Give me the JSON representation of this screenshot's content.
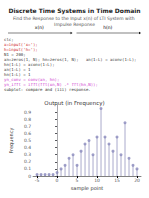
{
  "chart_data": {
    "type": "stem",
    "title": "Discrete Time Systems in Time Domain",
    "subtitle": "Find the Response to the Input x(n) of LTI System with Impulse Response",
    "plot_title": "Output (in Frequency)",
    "xlabel": "sample point",
    "ylabel": "Frequency",
    "x": [
      -5,
      -4,
      -3,
      -2,
      -1,
      0,
      1,
      2,
      3,
      4,
      5,
      6,
      7,
      8,
      9,
      10,
      11,
      12,
      13,
      14,
      15,
      16,
      17,
      18,
      19,
      20
    ],
    "series": [
      {
        "type": "bar",
        "color": "#aaaacc",
        "values": [
          0.02,
          0.02,
          0.02,
          0.02,
          0.02,
          0.05,
          0.1,
          0.15,
          0.25,
          0.3,
          0.15,
          0.35,
          0.45,
          0.5,
          0.3,
          0.55,
          0.95,
          0.55,
          0.45,
          0.35,
          0.55,
          0.3,
          0.75,
          0.25,
          0.15,
          0.1
        ]
      },
      {
        "type": "scatter",
        "color": "#8888bb",
        "marker": "circle",
        "values": [
          0.02,
          0.02,
          0.02,
          0.02,
          0.02,
          0.05,
          0.1,
          0.15,
          0.25,
          0.3,
          0.15,
          0.35,
          0.45,
          0.5,
          0.3,
          0.55,
          0.95,
          0.55,
          0.45,
          0.35,
          0.55,
          0.3,
          0.75,
          0.25,
          0.15,
          0.1
        ]
      }
    ],
    "xlim": [
      -6,
      21
    ],
    "xticks": [
      -5,
      0,
      5,
      10,
      15,
      20
    ],
    "ylim": [
      0,
      1.0
    ],
    "yticks": [
      0,
      0.1,
      0.2,
      0.3,
      0.4,
      0.5,
      0.6,
      0.7,
      0.8,
      0.9
    ],
    "grid": false,
    "annotations": {
      "number_lines": [
        {
          "text": "x(n)",
          "color": "#000000"
        },
        {
          "text": "h(n)",
          "color": "#000000"
        }
      ],
      "code": [
        {
          "text": "clc;",
          "color": "#333333"
        },
        {
          "text": "x=input('x=');",
          "color": "#cc2222"
        },
        {
          "text": "h=input('h=');",
          "color": "#cc2222"
        },
        {
          "text": "N1 = 200;",
          "color": "#333333"
        },
        {
          "text": "xn=zeros(1, N); hn=zeros(1, N);   xn(1:L) = xconv(1:L); hn(1:L) = xconv(1:L);",
          "color": "#333333"
        },
        {
          "text": "xn(1:L) = 1",
          "color": "#333333"
        },
        {
          "text": "hn(1:L) = 1",
          "color": "#333333"
        },
        {
          "text": "yn_conv = conv(xn, hn);",
          "color": "#cc33cc"
        },
        {
          "text": "yn_ifft = ifft(fft(xn,N) .* fft(hn,N));",
          "color": "#cc33cc"
        },
        {
          "text": "subplot: compare and (iii) response.",
          "color": "#333333"
        }
      ]
    }
  }
}
